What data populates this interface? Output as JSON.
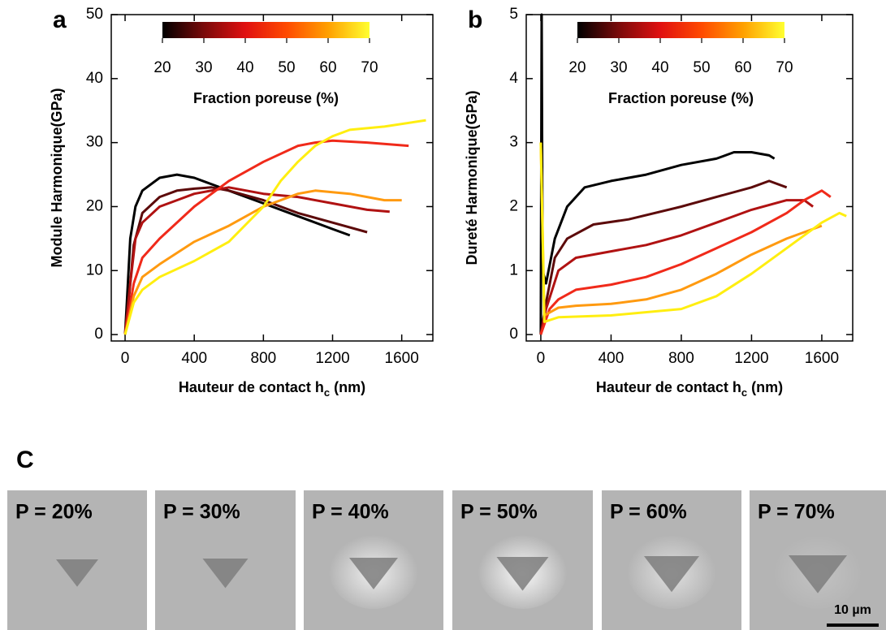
{
  "chart_data": [
    {
      "type": "line",
      "panel_label": "a",
      "ylabel": "Module Harmonique(GPa)",
      "xlabel": {
        "text": "Hauteur de contact h",
        "sub": "c",
        "unit": "(nm)"
      },
      "xlim": [
        -80,
        1780
      ],
      "ylim": [
        -1,
        50
      ],
      "xticks": [
        0,
        400,
        800,
        1200,
        1600
      ],
      "yticks": [
        0,
        10,
        20,
        30,
        40,
        50
      ],
      "colorbar": {
        "label": "Fraction poreuse (%)",
        "ticks": [
          20,
          30,
          40,
          50,
          60,
          70
        ],
        "colors": [
          "#000000",
          "#7a0a0a",
          "#e01010",
          "#ff4a00",
          "#ffa000",
          "#ffff30"
        ]
      },
      "series": [
        {
          "color": "#000000",
          "x": [
            0,
            10,
            30,
            60,
            100,
            200,
            300,
            400,
            500,
            600,
            800,
            1000,
            1200,
            1300
          ],
          "values": [
            0,
            5,
            15,
            20,
            22.5,
            24.5,
            25,
            24.5,
            23.5,
            22.5,
            20.5,
            18.5,
            16.5,
            15.5
          ]
        },
        {
          "color": "#5c0a0a",
          "x": [
            0,
            20,
            50,
            100,
            200,
            300,
            400,
            500,
            600,
            800,
            1000,
            1200,
            1400
          ],
          "values": [
            0,
            5,
            14,
            19,
            21.5,
            22.5,
            22.8,
            23,
            22.5,
            21,
            19,
            17.5,
            16
          ]
        },
        {
          "color": "#b01212",
          "x": [
            0,
            30,
            60,
            100,
            200,
            300,
            400,
            600,
            800,
            1000,
            1200,
            1400,
            1530
          ],
          "values": [
            0,
            8,
            15,
            17.5,
            20,
            21,
            22,
            23,
            22,
            21.5,
            20.5,
            19.5,
            19.2
          ]
        },
        {
          "color": "#f02a1a",
          "x": [
            0,
            50,
            100,
            200,
            400,
            600,
            800,
            1000,
            1100,
            1200,
            1400,
            1640
          ],
          "values": [
            0,
            8,
            12,
            15,
            20,
            24,
            27,
            29.5,
            30,
            30.3,
            30,
            29.5
          ]
        },
        {
          "color": "#ff9a10",
          "x": [
            0,
            50,
            100,
            200,
            400,
            600,
            800,
            1000,
            1100,
            1300,
            1500,
            1600
          ],
          "values": [
            0,
            6,
            9,
            11,
            14.5,
            17,
            20,
            22,
            22.5,
            22,
            21,
            21
          ]
        },
        {
          "color": "#ffee10",
          "x": [
            0,
            50,
            100,
            200,
            400,
            600,
            800,
            900,
            1000,
            1100,
            1200,
            1300,
            1500,
            1740
          ],
          "values": [
            0,
            5,
            7,
            9,
            11.5,
            14.5,
            20,
            24,
            27,
            29.5,
            31,
            32,
            32.5,
            33.5
          ]
        }
      ]
    },
    {
      "type": "line",
      "panel_label": "b",
      "ylabel": "Dureté Harmonique(GPa)",
      "xlabel": {
        "text": "Hauteur de contact h",
        "sub": "c",
        "unit": "(nm)"
      },
      "xlim": [
        -83,
        1776
      ],
      "ylim": [
        -0.1,
        5
      ],
      "xticks": [
        0,
        400,
        800,
        1200,
        1600
      ],
      "yticks": [
        0,
        1,
        2,
        3,
        4,
        5
      ],
      "colorbar": {
        "label": "Fraction poreuse (%)",
        "ticks": [
          20,
          30,
          40,
          50,
          60,
          70
        ],
        "colors": [
          "#000000",
          "#7a0a0a",
          "#e01010",
          "#ff4a00",
          "#ffa000",
          "#ffff30"
        ]
      },
      "series": [
        {
          "color": "#000000",
          "x": [
            0,
            5,
            10,
            30,
            80,
            150,
            250,
            400,
            600,
            800,
            1000,
            1100,
            1200,
            1300,
            1330
          ],
          "values": [
            0,
            5,
            1,
            0.8,
            1.5,
            2,
            2.3,
            2.4,
            2.5,
            2.65,
            2.75,
            2.85,
            2.85,
            2.8,
            2.75
          ]
        },
        {
          "color": "#5c0a0a",
          "x": [
            0,
            30,
            80,
            150,
            300,
            500,
            800,
            1000,
            1200,
            1300,
            1400
          ],
          "values": [
            0,
            0.5,
            1.2,
            1.5,
            1.72,
            1.8,
            2,
            2.15,
            2.3,
            2.4,
            2.3
          ]
        },
        {
          "color": "#b01212",
          "x": [
            0,
            30,
            100,
            200,
            400,
            600,
            800,
            1000,
            1200,
            1400,
            1500,
            1550
          ],
          "values": [
            0,
            0.4,
            1,
            1.2,
            1.3,
            1.4,
            1.55,
            1.75,
            1.95,
            2.1,
            2.1,
            2
          ]
        },
        {
          "color": "#f02a1a",
          "x": [
            0,
            50,
            100,
            200,
            400,
            600,
            800,
            1000,
            1200,
            1400,
            1500,
            1600,
            1650
          ],
          "values": [
            0,
            0.4,
            0.55,
            0.7,
            0.78,
            0.9,
            1.1,
            1.35,
            1.6,
            1.9,
            2.1,
            2.25,
            2.15
          ]
        },
        {
          "color": "#ff9a10",
          "x": [
            0,
            20,
            100,
            200,
            400,
            600,
            800,
            1000,
            1200,
            1400,
            1600
          ],
          "values": [
            3,
            0.3,
            0.42,
            0.45,
            0.48,
            0.55,
            0.7,
            0.95,
            1.25,
            1.5,
            1.7
          ]
        },
        {
          "color": "#ffee10",
          "x": [
            0,
            20,
            100,
            400,
            800,
            1000,
            1200,
            1400,
            1600,
            1700,
            1740
          ],
          "values": [
            3,
            0.2,
            0.27,
            0.3,
            0.4,
            0.6,
            0.95,
            1.35,
            1.75,
            1.9,
            1.85
          ]
        }
      ]
    }
  ],
  "images": {
    "label": "C",
    "panels": [
      "P = 20%",
      "P = 30%",
      "P = 40%",
      "P = 50%",
      "P = 60%",
      "P = 70%"
    ],
    "scale_bar": "10 µm"
  }
}
